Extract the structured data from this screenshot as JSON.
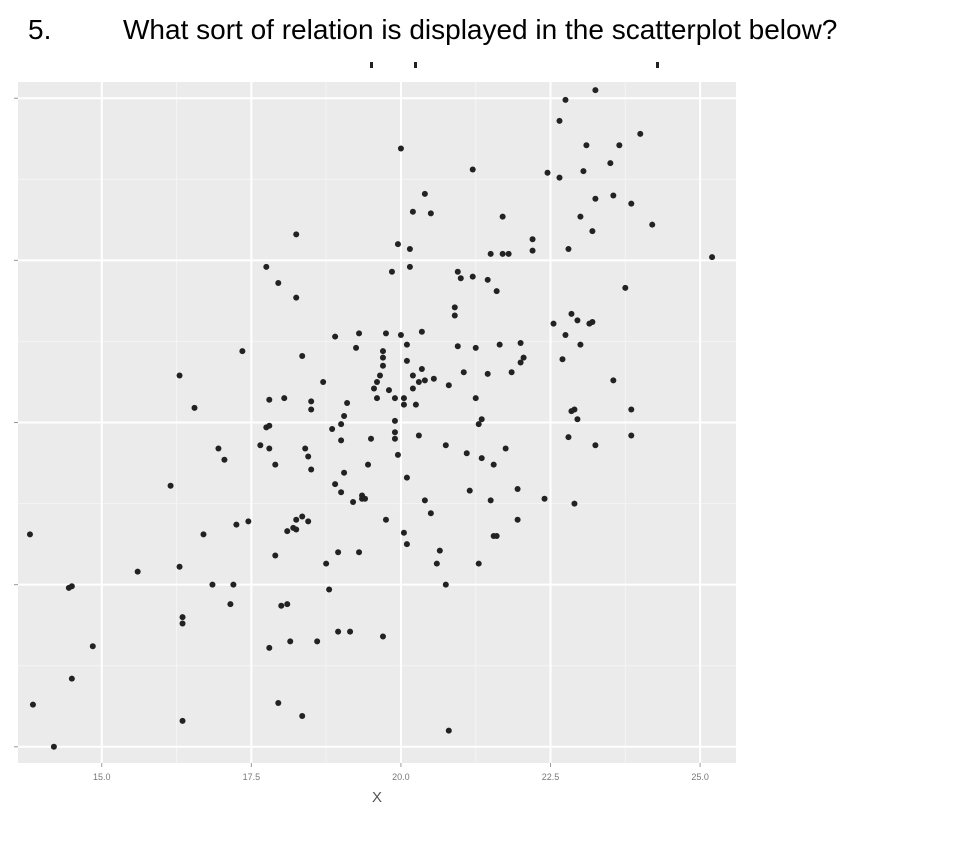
{
  "question": {
    "number": "5.",
    "text": "What sort of relation is displayed in the scatterplot below?"
  },
  "chart_data": {
    "type": "scatter",
    "title": "",
    "xlabel": "X",
    "ylabel": "",
    "x_ticks": [
      15.0,
      17.5,
      20.0,
      22.5,
      25.0
    ],
    "x_tick_labels": [
      "15.0",
      "17.5",
      "20.0",
      "22.5",
      "25.0"
    ],
    "y_ticks": [
      0,
      1,
      2,
      3,
      4
    ],
    "xlim": [
      13.6,
      25.6
    ],
    "ylim": [
      -0.1,
      4.1
    ],
    "grid": true,
    "panel_color": "#ebebeb",
    "point_color": "#222222",
    "points": [
      [
        13.8,
        1.31
      ],
      [
        13.85,
        0.26
      ],
      [
        14.2,
        0.0
      ],
      [
        14.45,
        0.98
      ],
      [
        14.5,
        0.99
      ],
      [
        14.5,
        0.42
      ],
      [
        14.85,
        0.62
      ],
      [
        15.6,
        1.08
      ],
      [
        16.15,
        1.61
      ],
      [
        16.3,
        2.29
      ],
      [
        16.3,
        1.11
      ],
      [
        16.35,
        0.8
      ],
      [
        16.35,
        0.76
      ],
      [
        16.35,
        0.16
      ],
      [
        16.55,
        2.09
      ],
      [
        16.7,
        1.31
      ],
      [
        16.85,
        1.0
      ],
      [
        16.95,
        1.84
      ],
      [
        17.05,
        1.77
      ],
      [
        17.15,
        0.88
      ],
      [
        17.2,
        1.0
      ],
      [
        17.25,
        1.37
      ],
      [
        17.35,
        2.44
      ],
      [
        17.45,
        1.39
      ],
      [
        17.65,
        1.86
      ],
      [
        17.75,
        2.96
      ],
      [
        17.75,
        1.97
      ],
      [
        17.8,
        2.14
      ],
      [
        17.8,
        1.98
      ],
      [
        17.8,
        1.84
      ],
      [
        17.8,
        0.61
      ],
      [
        17.9,
        1.74
      ],
      [
        17.9,
        1.18
      ],
      [
        17.95,
        2.86
      ],
      [
        17.95,
        0.27
      ],
      [
        18.0,
        0.87
      ],
      [
        18.05,
        2.15
      ],
      [
        18.1,
        0.88
      ],
      [
        18.1,
        1.33
      ],
      [
        18.15,
        0.65
      ],
      [
        18.2,
        1.35
      ],
      [
        18.25,
        1.4
      ],
      [
        18.25,
        1.34
      ],
      [
        18.25,
        3.16
      ],
      [
        18.25,
        2.77
      ],
      [
        18.35,
        2.41
      ],
      [
        18.35,
        1.42
      ],
      [
        18.35,
        0.19
      ],
      [
        18.4,
        1.84
      ],
      [
        18.45,
        1.79
      ],
      [
        18.45,
        1.39
      ],
      [
        18.5,
        2.13
      ],
      [
        18.5,
        1.71
      ],
      [
        18.5,
        2.08
      ],
      [
        18.6,
        0.65
      ],
      [
        18.7,
        2.25
      ],
      [
        18.75,
        1.13
      ],
      [
        18.8,
        0.97
      ],
      [
        18.85,
        1.96
      ],
      [
        18.9,
        2.53
      ],
      [
        18.9,
        1.62
      ],
      [
        18.95,
        1.2
      ],
      [
        18.95,
        0.71
      ],
      [
        19.0,
        1.89
      ],
      [
        19.0,
        1.99
      ],
      [
        19.0,
        1.57
      ],
      [
        19.05,
        1.69
      ],
      [
        19.05,
        2.04
      ],
      [
        19.1,
        2.12
      ],
      [
        19.15,
        0.71
      ],
      [
        19.2,
        1.51
      ],
      [
        19.25,
        2.46
      ],
      [
        19.3,
        2.55
      ],
      [
        19.3,
        1.2
      ],
      [
        19.35,
        1.55
      ],
      [
        19.35,
        1.53
      ],
      [
        19.4,
        1.53
      ],
      [
        19.45,
        1.74
      ],
      [
        19.5,
        1.9
      ],
      [
        19.55,
        2.21
      ],
      [
        19.6,
        2.25
      ],
      [
        19.6,
        2.15
      ],
      [
        19.65,
        2.29
      ],
      [
        19.7,
        2.4
      ],
      [
        19.7,
        2.35
      ],
      [
        19.7,
        2.44
      ],
      [
        19.7,
        0.68
      ],
      [
        19.75,
        2.55
      ],
      [
        19.75,
        1.4
      ],
      [
        19.8,
        2.2
      ],
      [
        19.85,
        2.93
      ],
      [
        19.9,
        2.01
      ],
      [
        19.9,
        1.94
      ],
      [
        19.9,
        1.9
      ],
      [
        19.9,
        2.15
      ],
      [
        19.95,
        3.1
      ],
      [
        19.95,
        1.8
      ],
      [
        20.0,
        3.69
      ],
      [
        20.0,
        2.54
      ],
      [
        20.05,
        1.32
      ],
      [
        20.05,
        2.15
      ],
      [
        20.05,
        2.11
      ],
      [
        20.1,
        2.48
      ],
      [
        20.1,
        1.66
      ],
      [
        20.1,
        1.25
      ],
      [
        20.1,
        2.38
      ],
      [
        20.15,
        3.07
      ],
      [
        20.15,
        2.96
      ],
      [
        20.2,
        3.3
      ],
      [
        20.2,
        2.29
      ],
      [
        20.2,
        2.21
      ],
      [
        20.25,
        2.11
      ],
      [
        20.3,
        2.25
      ],
      [
        20.3,
        1.92
      ],
      [
        20.35,
        2.33
      ],
      [
        20.35,
        2.56
      ],
      [
        20.4,
        3.41
      ],
      [
        20.4,
        2.26
      ],
      [
        20.4,
        1.52
      ],
      [
        20.5,
        3.29
      ],
      [
        20.5,
        1.44
      ],
      [
        20.55,
        2.27
      ],
      [
        20.6,
        1.13
      ],
      [
        20.65,
        1.21
      ],
      [
        20.75,
        1.0
      ],
      [
        20.75,
        1.86
      ],
      [
        20.8,
        0.1
      ],
      [
        20.8,
        2.23
      ],
      [
        20.9,
        2.66
      ],
      [
        20.9,
        2.71
      ],
      [
        20.95,
        2.47
      ],
      [
        20.95,
        2.93
      ],
      [
        21.0,
        2.89
      ],
      [
        21.05,
        2.31
      ],
      [
        21.1,
        1.81
      ],
      [
        21.15,
        1.58
      ],
      [
        21.2,
        2.9
      ],
      [
        21.2,
        3.56
      ],
      [
        21.25,
        2.46
      ],
      [
        21.25,
        2.15
      ],
      [
        21.3,
        1.99
      ],
      [
        21.3,
        1.13
      ],
      [
        21.35,
        1.78
      ],
      [
        21.35,
        2.02
      ],
      [
        21.45,
        2.88
      ],
      [
        21.45,
        2.3
      ],
      [
        21.5,
        3.04
      ],
      [
        21.5,
        1.52
      ],
      [
        21.55,
        1.3
      ],
      [
        21.55,
        1.74
      ],
      [
        21.6,
        2.81
      ],
      [
        21.6,
        1.3
      ],
      [
        21.65,
        2.48
      ],
      [
        21.7,
        3.04
      ],
      [
        21.7,
        3.27
      ],
      [
        21.75,
        1.84
      ],
      [
        21.8,
        3.04
      ],
      [
        21.85,
        2.31
      ],
      [
        21.95,
        1.59
      ],
      [
        21.95,
        1.4
      ],
      [
        22.0,
        2.49
      ],
      [
        22.0,
        2.37
      ],
      [
        22.05,
        2.4
      ],
      [
        22.2,
        3.06
      ],
      [
        22.2,
        3.13
      ],
      [
        22.4,
        1.53
      ],
      [
        22.45,
        3.54
      ],
      [
        22.55,
        2.61
      ],
      [
        22.65,
        3.86
      ],
      [
        22.65,
        3.51
      ],
      [
        22.7,
        2.39
      ],
      [
        22.75,
        3.99
      ],
      [
        22.75,
        2.54
      ],
      [
        22.8,
        3.07
      ],
      [
        22.8,
        1.91
      ],
      [
        22.85,
        2.07
      ],
      [
        22.85,
        2.67
      ],
      [
        22.9,
        2.08
      ],
      [
        22.9,
        1.5
      ],
      [
        22.95,
        2.02
      ],
      [
        22.95,
        2.63
      ],
      [
        23.0,
        2.48
      ],
      [
        23.0,
        3.27
      ],
      [
        23.05,
        3.55
      ],
      [
        23.1,
        3.71
      ],
      [
        23.15,
        2.61
      ],
      [
        23.2,
        3.18
      ],
      [
        23.25,
        3.38
      ],
      [
        23.25,
        1.86
      ],
      [
        23.2,
        2.62
      ],
      [
        23.25,
        4.05
      ],
      [
        23.5,
        3.6
      ],
      [
        23.55,
        3.4
      ],
      [
        23.55,
        2.26
      ],
      [
        23.65,
        3.71
      ],
      [
        23.75,
        2.83
      ],
      [
        23.85,
        3.35
      ],
      [
        23.85,
        2.08
      ],
      [
        23.85,
        1.92
      ],
      [
        24.0,
        3.78
      ],
      [
        24.2,
        3.22
      ],
      [
        25.2,
        3.02
      ]
    ]
  }
}
